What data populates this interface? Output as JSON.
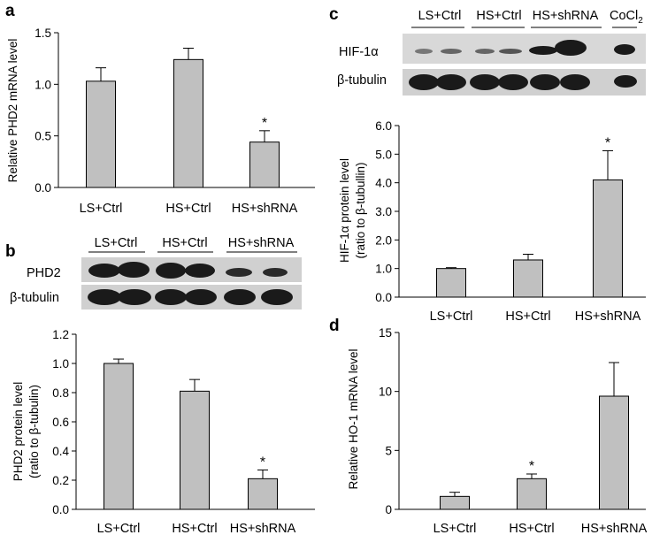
{
  "colors": {
    "bar_fill": "#c0c0c0",
    "bar_stroke": "#000000",
    "blot_bg": "#d0d0d0",
    "band": "#1a1a1a"
  },
  "chart_data": [
    {
      "id": "a",
      "panel_label": "a",
      "type": "bar",
      "categories": [
        "LS+Ctrl",
        "HS+Ctrl",
        "HS+shRNA"
      ],
      "values": [
        1.03,
        1.24,
        0.44
      ],
      "errors": [
        0.13,
        0.11,
        0.11
      ],
      "significance": [
        "",
        "",
        "*"
      ],
      "ylabel": "Relative PHD2 mRNA level",
      "ylim": [
        0,
        1.5
      ],
      "yticks": [
        "0.0",
        "0.5",
        "1.0",
        "1.5"
      ],
      "grid": false
    },
    {
      "id": "b",
      "panel_label": "b",
      "type": "bar",
      "categories": [
        "LS+Ctrl",
        "HS+Ctrl",
        "HS+shRNA"
      ],
      "values": [
        1.0,
        0.81,
        0.21
      ],
      "errors": [
        0.03,
        0.08,
        0.06
      ],
      "significance": [
        "",
        "",
        "*"
      ],
      "ylabel_line1": "PHD2  protein level",
      "ylabel_line2": "(ratio to  β-tubulin)",
      "ylim": [
        0,
        1.2
      ],
      "yticks": [
        "0.0",
        "0.2",
        "0.4",
        "0.6",
        "0.8",
        "1.0",
        "1.2"
      ],
      "grid": false
    },
    {
      "id": "c",
      "panel_label": "c",
      "type": "bar",
      "categories": [
        "LS+Ctrl",
        "HS+Ctrl",
        "HS+shRNA"
      ],
      "values": [
        1.0,
        1.3,
        4.1
      ],
      "errors": [
        0.03,
        0.2,
        1.02
      ],
      "significance": [
        "",
        "",
        "*"
      ],
      "ylabel_line1": "HIF-1α protein level",
      "ylabel_line2": "(ratio to  β-tubullin)",
      "ylim": [
        0,
        6
      ],
      "yticks": [
        "0.0",
        "1.0",
        "2.0",
        "3.0",
        "4.0",
        "5.0",
        "6.0"
      ],
      "grid": false
    },
    {
      "id": "d",
      "panel_label": "d",
      "type": "bar",
      "categories": [
        "LS+Ctrl",
        "HS+Ctrl",
        "HS+shRNA"
      ],
      "values": [
        1.1,
        2.6,
        9.6
      ],
      "errors": [
        0.35,
        0.4,
        2.85
      ],
      "significance": [
        "",
        "*",
        ""
      ],
      "ylabel": "Relative HO-1 mRNA level",
      "ylim": [
        0,
        15
      ],
      "yticks": [
        "0",
        "5",
        "10",
        "15"
      ],
      "grid": false
    }
  ],
  "blots": {
    "b": {
      "groups": [
        "LS+Ctrl",
        "HS+Ctrl",
        "HS+shRNA"
      ],
      "rows": [
        "PHD2",
        "β-tubulin"
      ]
    },
    "c": {
      "groups": [
        "LS+Ctrl",
        "HS+Ctrl",
        "HS+shRNA"
      ],
      "extra_lane_label": "CoCl",
      "extra_lane_sub": "2",
      "rows": [
        "HIF-1α",
        "β-tubulin"
      ]
    }
  }
}
